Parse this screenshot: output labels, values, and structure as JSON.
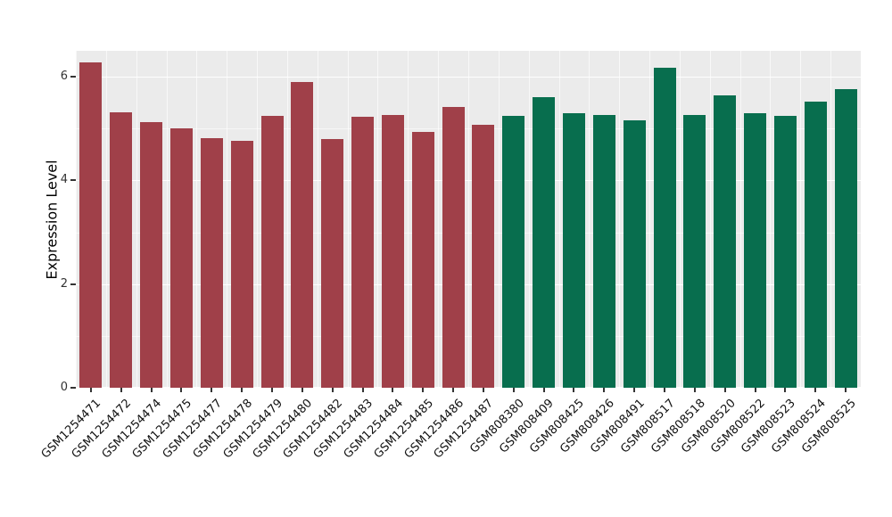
{
  "chart_data": {
    "type": "bar",
    "title": "",
    "xlabel": "",
    "ylabel": "Expression Level",
    "ylim": [
      0,
      6.5
    ],
    "y_ticks": [
      0,
      2,
      4,
      6
    ],
    "y_minor_ticks": [
      1,
      3,
      5
    ],
    "grid": "on",
    "legend": "none",
    "categories": [
      "GSM1254471",
      "GSM1254472",
      "GSM1254474",
      "GSM1254475",
      "GSM1254477",
      "GSM1254478",
      "GSM1254479",
      "GSM1254480",
      "GSM1254482",
      "GSM1254483",
      "GSM1254484",
      "GSM1254485",
      "GSM1254486",
      "GSM1254487",
      "GSM808380",
      "GSM808409",
      "GSM808425",
      "GSM808426",
      "GSM808491",
      "GSM808517",
      "GSM808518",
      "GSM808520",
      "GSM808522",
      "GSM808523",
      "GSM808524",
      "GSM808525"
    ],
    "values": [
      6.27,
      5.32,
      5.12,
      5.01,
      4.82,
      4.76,
      5.25,
      5.89,
      4.79,
      5.22,
      5.27,
      4.94,
      5.41,
      5.07,
      5.24,
      5.61,
      5.29,
      5.27,
      5.16,
      6.17,
      5.27,
      5.64,
      5.3,
      5.24,
      5.52,
      5.76
    ],
    "groups": [
      "group1",
      "group1",
      "group1",
      "group1",
      "group1",
      "group1",
      "group1",
      "group1",
      "group1",
      "group1",
      "group1",
      "group1",
      "group1",
      "group1",
      "group2",
      "group2",
      "group2",
      "group2",
      "group2",
      "group2",
      "group2",
      "group2",
      "group2",
      "group2",
      "group2",
      "group2"
    ],
    "group_colors": {
      "group1": "#a04049",
      "group2": "#086e4e"
    },
    "style": {
      "panel_bg": "#ebebeb",
      "grid_color": "#ffffff",
      "tick_color": "#333333",
      "text_color": "#111111"
    }
  }
}
